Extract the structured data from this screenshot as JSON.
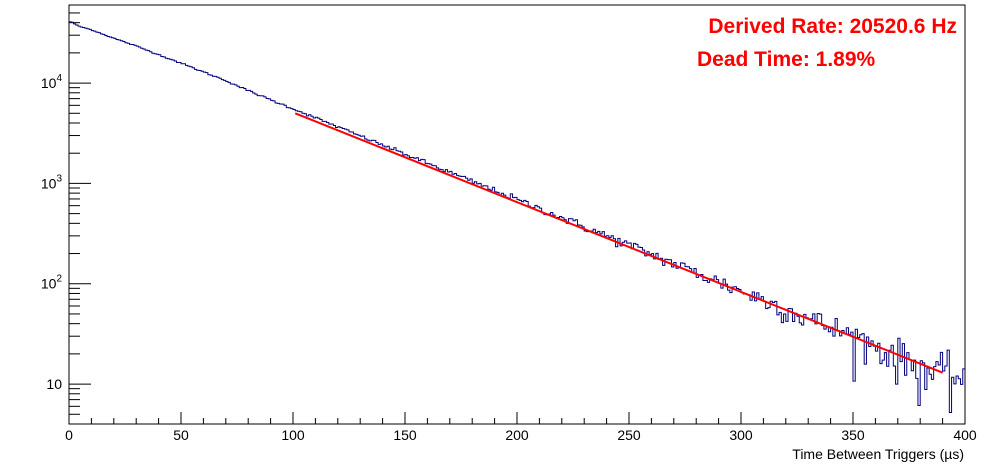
{
  "chart_data": {
    "type": "line",
    "title": "",
    "xlabel": "Time Between Triggers (µs)",
    "ylabel": "",
    "xlim": [
      0,
      400
    ],
    "ylim": [
      4,
      60000
    ],
    "yscale": "log",
    "grid": false,
    "x_ticks": [
      0,
      50,
      100,
      150,
      200,
      250,
      300,
      350,
      400
    ],
    "y_ticks": [
      {
        "value": 10,
        "base": "10",
        "exp": ""
      },
      {
        "value": 100,
        "base": "10",
        "exp": "2"
      },
      {
        "value": 1000,
        "base": "10",
        "exp": "3"
      },
      {
        "value": 10000,
        "base": "10",
        "exp": "4"
      }
    ],
    "annotations": [
      {
        "text": "Derived Rate: 20520.6 Hz",
        "color": "#ff0000"
      },
      {
        "text": "Dead Time: 1.89%",
        "color": "#ff0000"
      }
    ],
    "series": [
      {
        "kind": "histogram",
        "color": "#000080",
        "bin_width": 1,
        "x": [
          0,
          2,
          3,
          5,
          10,
          20,
          30,
          40,
          50,
          60,
          70,
          80,
          90,
          100,
          125,
          150,
          175,
          200,
          225,
          250,
          275,
          300,
          325,
          350,
          375,
          385,
          395,
          400
        ],
        "y": [
          41000,
          40000,
          38000,
          36500,
          34000,
          28000,
          23400,
          19200,
          15800,
          12900,
          10600,
          8400,
          6800,
          5550,
          3300,
          1960,
          1160,
          690,
          410,
          242,
          143,
          85,
          50,
          30,
          17,
          13,
          12,
          12
        ]
      },
      {
        "kind": "fit",
        "color": "#ff0000",
        "function": "exponential",
        "x": [
          101,
          390
        ],
        "y": [
          5000,
          13
        ]
      }
    ]
  }
}
